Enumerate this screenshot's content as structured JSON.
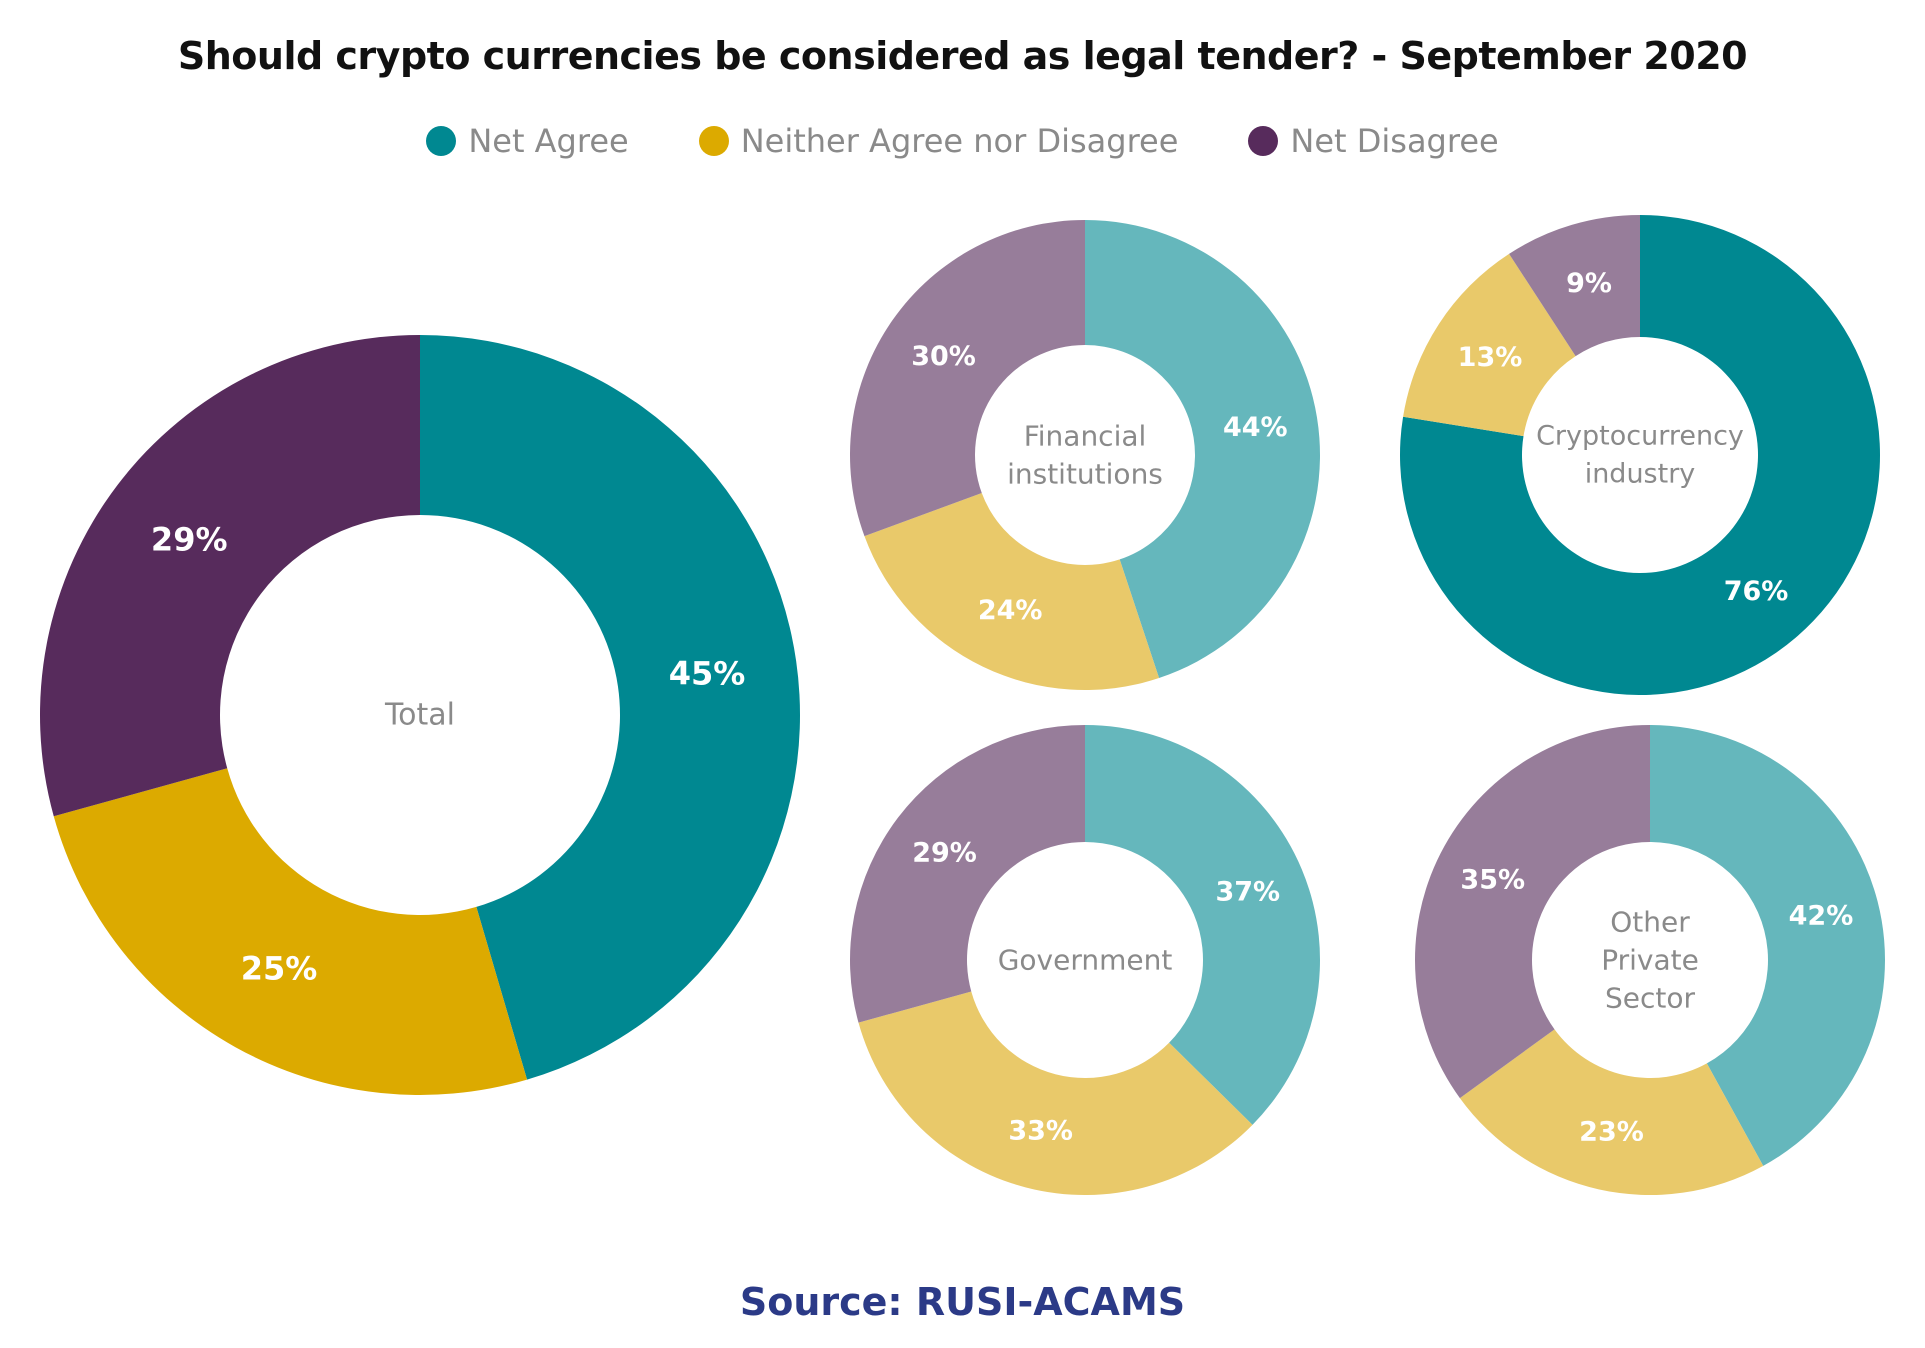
{
  "title": "Should crypto currencies be considered as legal tender? - September 2020",
  "source": "Source: RUSI-ACAMS",
  "legend": [
    {
      "label": "Net Agree",
      "color": "#008891"
    },
    {
      "label": "Neither Agree nor Disagree",
      "color": "#dcaa00"
    },
    {
      "label": "Net Disagree",
      "color": "#572b5c"
    }
  ],
  "chart_data": [
    {
      "type": "pie",
      "center_label": [
        "Total"
      ],
      "categories": [
        "Net Agree",
        "Neither Agree nor Disagree",
        "Net Disagree"
      ],
      "values": [
        45,
        25,
        29
      ],
      "value_labels": [
        "45%",
        "25%",
        "29%"
      ],
      "colors": [
        "#008891",
        "#dcaa00",
        "#572b5c"
      ]
    },
    {
      "type": "pie",
      "center_label": [
        "Financial",
        "institutions"
      ],
      "categories": [
        "Net Agree",
        "Neither Agree nor Disagree",
        "Net Disagree"
      ],
      "values": [
        44,
        24,
        30
      ],
      "value_labels": [
        "44%",
        "24%",
        "30%"
      ],
      "colors": [
        "#65b7bc",
        "#e9c96a",
        "#977d9a"
      ]
    },
    {
      "type": "pie",
      "center_label": [
        "Cryptocurrency",
        "industry"
      ],
      "categories": [
        "Net Agree",
        "Neither Agree nor Disagree",
        "Net Disagree"
      ],
      "values": [
        76,
        13,
        9
      ],
      "value_labels": [
        "76%",
        "13%",
        "9%"
      ],
      "colors": [
        "#008891",
        "#e9c96a",
        "#977d9a"
      ]
    },
    {
      "type": "pie",
      "center_label": [
        "Government"
      ],
      "categories": [
        "Net Agree",
        "Neither Agree nor Disagree",
        "Net Disagree"
      ],
      "values": [
        37,
        33,
        29
      ],
      "value_labels": [
        "37%",
        "33%",
        "29%"
      ],
      "colors": [
        "#65b7bc",
        "#e9c96a",
        "#977d9a"
      ]
    },
    {
      "type": "pie",
      "center_label": [
        "Other",
        "Private",
        "Sector"
      ],
      "categories": [
        "Net Agree",
        "Neither Agree nor Disagree",
        "Net Disagree"
      ],
      "values": [
        42,
        23,
        35
      ],
      "value_labels": [
        "42%",
        "23%",
        "35%"
      ],
      "colors": [
        "#65b7bc",
        "#e9c96a",
        "#977d9a"
      ]
    }
  ]
}
